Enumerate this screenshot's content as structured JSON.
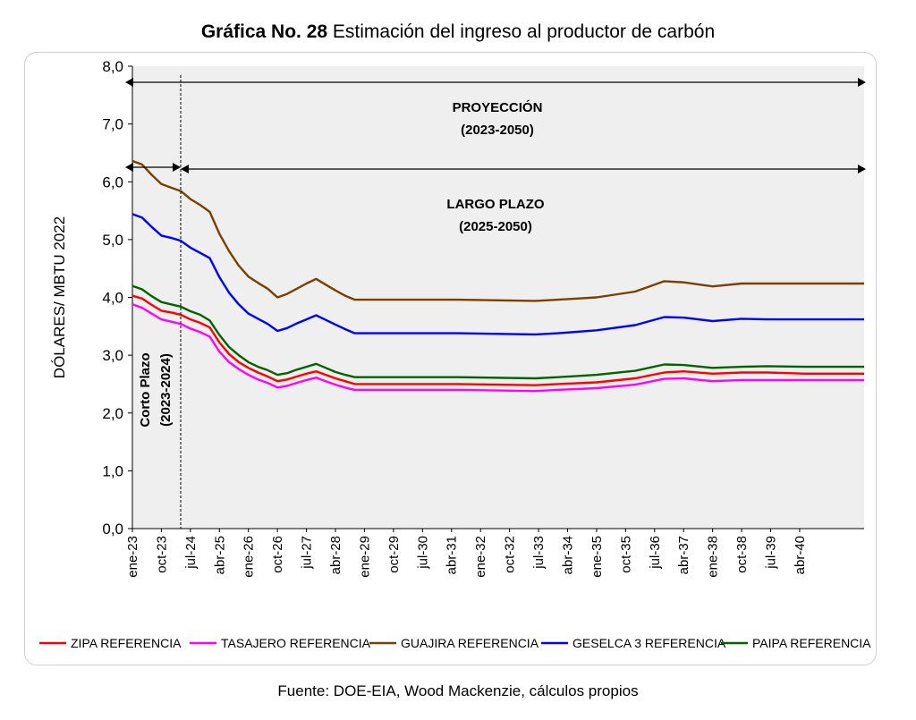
{
  "title": {
    "bold": "Gráfica No. 28",
    "rest": "Estimación del ingreso al productor de carbón"
  },
  "source": "Fuente: DOE-EIA, Wood Mackenzie, cálculos propios",
  "annotations": {
    "proyeccion": "PROYECCIÓN",
    "proyeccion_years": "(2023-2050)",
    "largo_plazo": "LARGO PLAZO",
    "largo_plazo_years": "(2025-2050)",
    "corto_plazo": "Corto Plazo",
    "corto_plazo_years": "(2023-2024)"
  },
  "colors": {
    "plot_bg": "#efefef",
    "zipa": "#ff0000",
    "tasajero": "#ff00ff",
    "guajira": "#7b3f00",
    "geselca": "#0000ff",
    "paipa": "#006400"
  },
  "chart_data": {
    "type": "line",
    "title": "Gráfica No. 28 Estimación del ingreso al productor de carbón",
    "ylabel": "DÓLARES/ MBTU 2022",
    "xlabel": "",
    "ylim": [
      0,
      8
    ],
    "yticks": [
      "0,0",
      "1,0",
      "2,0",
      "3,0",
      "4,0",
      "5,0",
      "6,0",
      "7,0",
      "8,0"
    ],
    "xtick_labels": [
      "ene-23",
      "oct-23",
      "jul-24",
      "abr-25",
      "ene-26",
      "oct-26",
      "jul-27",
      "abr-28",
      "ene-29",
      "oct-29",
      "jul-30",
      "abr-31",
      "ene-32",
      "oct-32",
      "jul-33",
      "abr-34",
      "ene-35",
      "oct-35",
      "jul-36",
      "abr-37",
      "ene-38",
      "oct-38",
      "jul-39",
      "abr-40"
    ],
    "x_start": "2023-01",
    "x_end": "2041-12",
    "grid": false,
    "legend": "bottom",
    "series": [
      {
        "name": "ZIPA REFERENCIA",
        "color": "#ff0000",
        "points": [
          [
            "2023-01",
            4.03
          ],
          [
            "2023-04",
            3.98
          ],
          [
            "2023-07",
            3.87
          ],
          [
            "2023-10",
            3.77
          ],
          [
            "2024-01",
            3.74
          ],
          [
            "2024-04",
            3.7
          ],
          [
            "2024-07",
            3.62
          ],
          [
            "2024-10",
            3.56
          ],
          [
            "2025-01",
            3.48
          ],
          [
            "2025-04",
            3.22
          ],
          [
            "2025-07",
            3.02
          ],
          [
            "2025-10",
            2.88
          ],
          [
            "2026-01",
            2.78
          ],
          [
            "2026-04",
            2.7
          ],
          [
            "2026-07",
            2.63
          ],
          [
            "2026-10",
            2.55
          ],
          [
            "2027-01",
            2.58
          ],
          [
            "2027-04",
            2.63
          ],
          [
            "2027-07",
            2.68
          ],
          [
            "2027-10",
            2.72
          ],
          [
            "2028-01",
            2.66
          ],
          [
            "2028-04",
            2.6
          ],
          [
            "2028-07",
            2.55
          ],
          [
            "2028-10",
            2.5
          ],
          [
            "2029-01",
            2.5
          ],
          [
            "2031-06",
            2.5
          ],
          [
            "2033-06",
            2.48
          ],
          [
            "2034-01",
            2.5
          ],
          [
            "2035-01",
            2.53
          ],
          [
            "2036-01",
            2.6
          ],
          [
            "2036-10",
            2.7
          ],
          [
            "2037-04",
            2.72
          ],
          [
            "2038-01",
            2.68
          ],
          [
            "2038-10",
            2.7
          ],
          [
            "2039-06",
            2.7
          ],
          [
            "2040-06",
            2.68
          ],
          [
            "2041-12",
            2.68
          ]
        ]
      },
      {
        "name": "TASAJERO REFERENCIA",
        "color": "#ff00ff",
        "points": [
          [
            "2023-01",
            3.88
          ],
          [
            "2023-04",
            3.82
          ],
          [
            "2023-07",
            3.72
          ],
          [
            "2023-10",
            3.62
          ],
          [
            "2024-01",
            3.58
          ],
          [
            "2024-04",
            3.54
          ],
          [
            "2024-07",
            3.46
          ],
          [
            "2024-10",
            3.4
          ],
          [
            "2025-01",
            3.32
          ],
          [
            "2025-04",
            3.06
          ],
          [
            "2025-07",
            2.88
          ],
          [
            "2025-10",
            2.76
          ],
          [
            "2026-01",
            2.66
          ],
          [
            "2026-04",
            2.58
          ],
          [
            "2026-07",
            2.52
          ],
          [
            "2026-10",
            2.44
          ],
          [
            "2027-01",
            2.47
          ],
          [
            "2027-04",
            2.52
          ],
          [
            "2027-07",
            2.57
          ],
          [
            "2027-10",
            2.61
          ],
          [
            "2028-01",
            2.55
          ],
          [
            "2028-04",
            2.49
          ],
          [
            "2028-07",
            2.44
          ],
          [
            "2028-10",
            2.4
          ],
          [
            "2029-01",
            2.4
          ],
          [
            "2031-06",
            2.4
          ],
          [
            "2033-06",
            2.38
          ],
          [
            "2034-01",
            2.4
          ],
          [
            "2035-01",
            2.43
          ],
          [
            "2036-01",
            2.49
          ],
          [
            "2036-10",
            2.59
          ],
          [
            "2037-04",
            2.6
          ],
          [
            "2038-01",
            2.55
          ],
          [
            "2038-10",
            2.57
          ],
          [
            "2039-06",
            2.57
          ],
          [
            "2040-06",
            2.57
          ],
          [
            "2041-12",
            2.57
          ]
        ]
      },
      {
        "name": "GUAJIRA REFERENCIA",
        "color": "#7b3f00",
        "points": [
          [
            "2023-01",
            6.36
          ],
          [
            "2023-04",
            6.3
          ],
          [
            "2023-07",
            6.12
          ],
          [
            "2023-10",
            5.96
          ],
          [
            "2024-01",
            5.9
          ],
          [
            "2024-04",
            5.84
          ],
          [
            "2024-07",
            5.7
          ],
          [
            "2024-10",
            5.6
          ],
          [
            "2025-01",
            5.48
          ],
          [
            "2025-04",
            5.1
          ],
          [
            "2025-07",
            4.8
          ],
          [
            "2025-10",
            4.55
          ],
          [
            "2026-01",
            4.36
          ],
          [
            "2026-04",
            4.25
          ],
          [
            "2026-07",
            4.15
          ],
          [
            "2026-10",
            4.0
          ],
          [
            "2027-01",
            4.06
          ],
          [
            "2027-04",
            4.15
          ],
          [
            "2027-07",
            4.24
          ],
          [
            "2027-10",
            4.32
          ],
          [
            "2028-01",
            4.22
          ],
          [
            "2028-04",
            4.12
          ],
          [
            "2028-07",
            4.03
          ],
          [
            "2028-10",
            3.96
          ],
          [
            "2029-01",
            3.96
          ],
          [
            "2031-06",
            3.96
          ],
          [
            "2033-06",
            3.94
          ],
          [
            "2034-01",
            3.96
          ],
          [
            "2035-01",
            4.0
          ],
          [
            "2036-01",
            4.1
          ],
          [
            "2036-10",
            4.28
          ],
          [
            "2037-04",
            4.26
          ],
          [
            "2038-01",
            4.19
          ],
          [
            "2038-10",
            4.24
          ],
          [
            "2039-06",
            4.24
          ],
          [
            "2040-06",
            4.24
          ],
          [
            "2041-12",
            4.24
          ]
        ]
      },
      {
        "name": "GESELCA 3 REFERENCIA",
        "color": "#0000ff",
        "points": [
          [
            "2023-01",
            5.44
          ],
          [
            "2023-04",
            5.38
          ],
          [
            "2023-07",
            5.22
          ],
          [
            "2023-10",
            5.07
          ],
          [
            "2024-01",
            5.03
          ],
          [
            "2024-04",
            4.98
          ],
          [
            "2024-07",
            4.86
          ],
          [
            "2024-10",
            4.77
          ],
          [
            "2025-01",
            4.68
          ],
          [
            "2025-04",
            4.35
          ],
          [
            "2025-07",
            4.08
          ],
          [
            "2025-10",
            3.88
          ],
          [
            "2026-01",
            3.72
          ],
          [
            "2026-04",
            3.63
          ],
          [
            "2026-07",
            3.54
          ],
          [
            "2026-10",
            3.42
          ],
          [
            "2027-01",
            3.47
          ],
          [
            "2027-04",
            3.55
          ],
          [
            "2027-07",
            3.62
          ],
          [
            "2027-10",
            3.69
          ],
          [
            "2028-01",
            3.61
          ],
          [
            "2028-04",
            3.53
          ],
          [
            "2028-07",
            3.45
          ],
          [
            "2028-10",
            3.38
          ],
          [
            "2029-01",
            3.38
          ],
          [
            "2031-06",
            3.38
          ],
          [
            "2033-06",
            3.36
          ],
          [
            "2034-01",
            3.38
          ],
          [
            "2035-01",
            3.43
          ],
          [
            "2036-01",
            3.52
          ],
          [
            "2036-10",
            3.66
          ],
          [
            "2037-04",
            3.65
          ],
          [
            "2038-01",
            3.59
          ],
          [
            "2038-10",
            3.63
          ],
          [
            "2039-06",
            3.62
          ],
          [
            "2040-06",
            3.62
          ],
          [
            "2041-12",
            3.62
          ]
        ]
      },
      {
        "name": "PAIPA REFERENCIA",
        "color": "#006400",
        "points": [
          [
            "2023-01",
            4.2
          ],
          [
            "2023-04",
            4.14
          ],
          [
            "2023-07",
            4.02
          ],
          [
            "2023-10",
            3.92
          ],
          [
            "2024-01",
            3.88
          ],
          [
            "2024-04",
            3.84
          ],
          [
            "2024-07",
            3.76
          ],
          [
            "2024-10",
            3.7
          ],
          [
            "2025-01",
            3.6
          ],
          [
            "2025-04",
            3.35
          ],
          [
            "2025-07",
            3.14
          ],
          [
            "2025-10",
            3.0
          ],
          [
            "2026-01",
            2.88
          ],
          [
            "2026-04",
            2.8
          ],
          [
            "2026-07",
            2.74
          ],
          [
            "2026-10",
            2.66
          ],
          [
            "2027-01",
            2.69
          ],
          [
            "2027-04",
            2.75
          ],
          [
            "2027-07",
            2.8
          ],
          [
            "2027-10",
            2.85
          ],
          [
            "2028-01",
            2.78
          ],
          [
            "2028-04",
            2.71
          ],
          [
            "2028-07",
            2.66
          ],
          [
            "2028-10",
            2.62
          ],
          [
            "2029-01",
            2.62
          ],
          [
            "2031-06",
            2.62
          ],
          [
            "2033-06",
            2.6
          ],
          [
            "2034-01",
            2.62
          ],
          [
            "2035-01",
            2.66
          ],
          [
            "2036-01",
            2.73
          ],
          [
            "2036-10",
            2.84
          ],
          [
            "2037-04",
            2.83
          ],
          [
            "2038-01",
            2.78
          ],
          [
            "2038-10",
            2.8
          ],
          [
            "2039-06",
            2.81
          ],
          [
            "2040-06",
            2.8
          ],
          [
            "2041-12",
            2.8
          ]
        ]
      }
    ]
  }
}
